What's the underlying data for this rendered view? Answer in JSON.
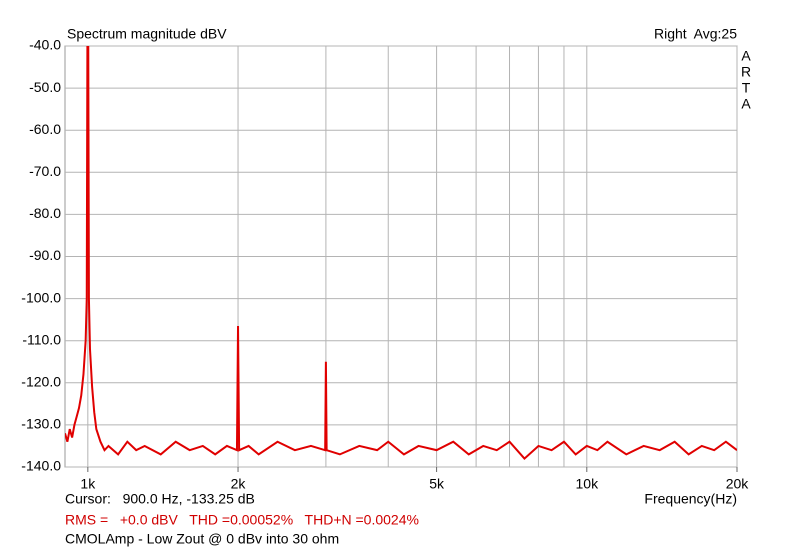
{
  "chart_data": {
    "type": "line",
    "title": "Spectrum magnitude dBV",
    "top_right": "Right  Avg:25",
    "side_label": [
      "A",
      "R",
      "T",
      "A"
    ],
    "x_label": "Frequency(Hz)",
    "cursor": "Cursor:   900.0 Hz, -133.25 dB",
    "stats": "RMS =   +0.0 dBV   THD =0.00052%   THD+N =0.0024%",
    "note": "CMOLAmp - Low Zout @ 0 dBv into 30 ohm",
    "log_x": true,
    "grid": true,
    "color": "#e00000",
    "xlim": [
      900,
      20000
    ],
    "ylim": [
      -140,
      -40
    ],
    "xticks": [
      {
        "value": 1000,
        "label": "1k"
      },
      {
        "value": 2000,
        "label": "2k"
      },
      {
        "value": 5000,
        "label": "5k"
      },
      {
        "value": 10000,
        "label": "10k"
      },
      {
        "value": 20000,
        "label": "20k"
      }
    ],
    "xgrid": [
      1000,
      2000,
      3000,
      4000,
      5000,
      6000,
      7000,
      8000,
      9000,
      10000,
      20000
    ],
    "yticks": [
      {
        "value": -40,
        "label": "-40.0"
      },
      {
        "value": -50,
        "label": "-50.0"
      },
      {
        "value": -60,
        "label": "-60.0"
      },
      {
        "value": -70,
        "label": "-70.0"
      },
      {
        "value": -80,
        "label": "-80.0"
      },
      {
        "value": -90,
        "label": "-90.0"
      },
      {
        "value": -100,
        "label": "-100.0"
      },
      {
        "value": -110,
        "label": "-110.0"
      },
      {
        "value": -120,
        "label": "-120.0"
      },
      {
        "value": -130,
        "label": "-130.0"
      },
      {
        "value": -140,
        "label": "-140.0"
      }
    ],
    "x": [
      900,
      910,
      920,
      930,
      940,
      950,
      960,
      970,
      980,
      990,
      995,
      1000,
      1005,
      1010,
      1020,
      1030,
      1040,
      1060,
      1080,
      1100,
      1150,
      1200,
      1250,
      1300,
      1400,
      1500,
      1600,
      1700,
      1800,
      1900,
      1990,
      2000,
      2010,
      2100,
      2200,
      2400,
      2600,
      2800,
      2990,
      3000,
      3010,
      3200,
      3500,
      3800,
      4000,
      4300,
      4600,
      5000,
      5400,
      5800,
      6200,
      6600,
      7000,
      7500,
      8000,
      8500,
      9000,
      9500,
      10000,
      10500,
      11000,
      12000,
      13000,
      14000,
      15000,
      16000,
      17000,
      18000,
      19000,
      20000
    ],
    "values": [
      -132,
      -134,
      -131,
      -133,
      -130,
      -128,
      -126,
      -123,
      -118,
      -110,
      -100,
      0,
      -100,
      -112,
      -121,
      -127,
      -131,
      -134,
      -136,
      -135,
      -137,
      -134,
      -136,
      -135,
      -137,
      -134,
      -136,
      -135,
      -137,
      -135,
      -136,
      -106.5,
      -136,
      -135,
      -137,
      -134,
      -136,
      -135,
      -136,
      -115,
      -136,
      -137,
      -135,
      -136,
      -134,
      -137,
      -135,
      -136,
      -134,
      -137,
      -135,
      -136,
      -134,
      -138,
      -135,
      -136,
      -134,
      -137,
      -135,
      -136,
      -134,
      -137,
      -135,
      -136,
      -134,
      -137,
      -135,
      -136,
      -134,
      -136
    ]
  }
}
